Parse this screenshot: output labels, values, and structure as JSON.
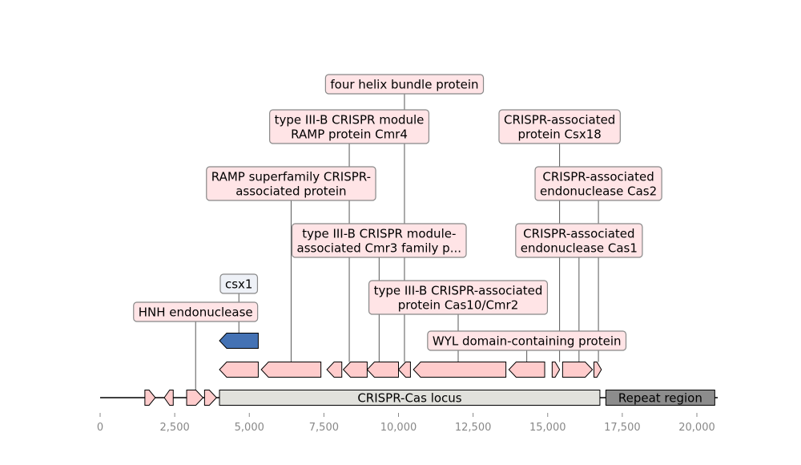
{
  "axis": {
    "min": 0,
    "max": 20500,
    "ticks": [
      0,
      2500,
      5000,
      7500,
      10000,
      12500,
      15000,
      17500,
      20000
    ],
    "tick_labels": [
      "0",
      "2,500",
      "5,000",
      "7,500",
      "10,000",
      "12,500",
      "15,000",
      "17,500",
      "20,000"
    ],
    "line_start": 0,
    "line_end": 20700
  },
  "regions": [
    {
      "name": "CRISPR-Cas locus",
      "start": 4000,
      "end": 16750,
      "color": "#e1e1dc"
    },
    {
      "name": "Repeat region",
      "start": 16950,
      "end": 20600,
      "color": "#8c8c8c"
    }
  ],
  "genes": [
    {
      "start": 1500,
      "end": 1850,
      "strand": 1,
      "row": 0,
      "label": ""
    },
    {
      "start": 2150,
      "end": 2450,
      "strand": -1,
      "row": 0,
      "label": ""
    },
    {
      "start": 2900,
      "end": 3450,
      "strand": 1,
      "row": 0,
      "label": "HNH endonuclease"
    },
    {
      "start": 3500,
      "end": 3900,
      "strand": 1,
      "row": 0,
      "label": ""
    },
    {
      "start": 4000,
      "end": 5300,
      "strand": -1,
      "row": 1,
      "label": ""
    },
    {
      "start": 5400,
      "end": 7400,
      "strand": -1,
      "row": 1,
      "label": "RAMP superfamily CRISPR-associated protein"
    },
    {
      "start": 7600,
      "end": 8100,
      "strand": -1,
      "row": 1,
      "label": ""
    },
    {
      "start": 8150,
      "end": 8950,
      "strand": -1,
      "row": 1,
      "label": "type III-B CRISPR module RAMP protein Cmr4"
    },
    {
      "start": 8950,
      "end": 10000,
      "strand": -1,
      "row": 1,
      "label": "type III-B CRISPR module-associated Cmr3 family p..."
    },
    {
      "start": 10000,
      "end": 10400,
      "strand": -1,
      "row": 1,
      "label": "four helix bundle protein"
    },
    {
      "start": 10500,
      "end": 13600,
      "strand": -1,
      "row": 1,
      "label": "type III-B CRISPR-associated protein Cas10/Cmr2"
    },
    {
      "start": 13700,
      "end": 14900,
      "strand": -1,
      "row": 1,
      "label": "WYL domain-containing protein"
    },
    {
      "start": 15150,
      "end": 15400,
      "strand": 1,
      "row": 1,
      "label": "CRISPR-associated protein Csx18"
    },
    {
      "start": 15500,
      "end": 16500,
      "strand": 1,
      "row": 1,
      "label": "CRISPR-associated endonuclease Cas1"
    },
    {
      "start": 16550,
      "end": 16800,
      "strand": 1,
      "row": 1,
      "label": "CRISPR-associated endonuclease Cas2"
    },
    {
      "start": 4000,
      "end": 5300,
      "strand": -1,
      "row": 2,
      "label": "csx1",
      "color": "#4472b4"
    }
  ],
  "labels": [
    {
      "lines": [
        "HNH endonuclease"
      ],
      "anchor": 3200,
      "level": 0,
      "cx": 3200,
      "blue": false
    },
    {
      "lines": [
        "csx1"
      ],
      "anchor": 4650,
      "level": 1,
      "cx": 4650,
      "blue": true
    },
    {
      "lines": [
        "WYL domain-containing protein"
      ],
      "anchor": 14300,
      "level": 2,
      "cx": 14300,
      "blue": false
    },
    {
      "lines": [
        "type III-B CRISPR-associated",
        "protein Cas10/Cmr2"
      ],
      "anchor": 12000,
      "level": 3,
      "cx": 12000,
      "blue": false
    },
    {
      "lines": [
        "type III-B CRISPR module-",
        "associated Cmr3 family p..."
      ],
      "anchor": 9350,
      "level": 4,
      "cx": 9350,
      "blue": false
    },
    {
      "lines": [
        "CRISPR-associated",
        "endonuclease Cas1"
      ],
      "anchor": 16050,
      "level": 4,
      "cx": 16050,
      "blue": false
    },
    {
      "lines": [
        "RAMP superfamily CRISPR-",
        "associated protein"
      ],
      "anchor": 6400,
      "level": 5,
      "cx": 6400,
      "blue": false
    },
    {
      "lines": [
        "CRISPR-associated",
        "endonuclease Cas2"
      ],
      "anchor": 16700,
      "level": 5,
      "cx": 16700,
      "blue": false
    },
    {
      "lines": [
        "type III-B CRISPR module",
        "RAMP protein Cmr4"
      ],
      "anchor": 8350,
      "level": 6,
      "cx": 8350,
      "blue": false
    },
    {
      "lines": [
        "CRISPR-associated",
        "protein Csx18"
      ],
      "anchor": 15400,
      "level": 6,
      "cx": 15400,
      "blue": false
    },
    {
      "lines": [
        "four helix bundle protein"
      ],
      "anchor": 10200,
      "level": 7,
      "cx": 10200,
      "blue": false
    }
  ]
}
